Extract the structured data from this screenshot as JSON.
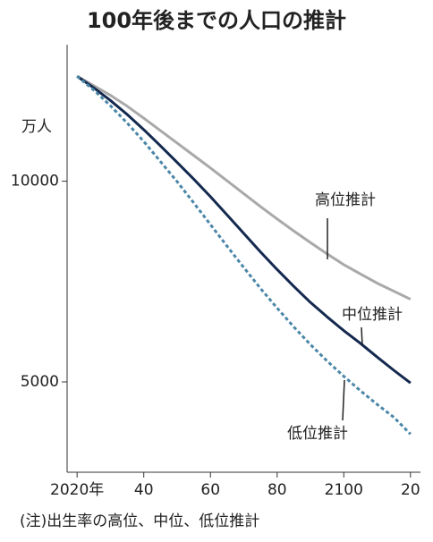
{
  "chart_data": {
    "type": "line",
    "title": "100年後までの人口の推計",
    "y_label": "万人",
    "note": "(注)出生率の高位、中位、低位推計",
    "x": [
      2020,
      2025,
      2030,
      2035,
      2040,
      2045,
      2050,
      2055,
      2060,
      2065,
      2070,
      2075,
      2080,
      2085,
      2090,
      2095,
      2100,
      2105,
      2110,
      2115,
      2120
    ],
    "series": [
      {
        "name": "高位推計",
        "color": "#a9a9a9",
        "dashed": false,
        "values": [
          12615,
          12380,
          12140,
          11870,
          11570,
          11260,
          10950,
          10640,
          10330,
          10010,
          9690,
          9370,
          9060,
          8760,
          8470,
          8190,
          7920,
          7690,
          7460,
          7260,
          7060
        ]
      },
      {
        "name": "中位推計",
        "color": "#14294f",
        "dashed": false,
        "values": [
          12615,
          12326,
          12012,
          11664,
          11284,
          10880,
          10469,
          10051,
          9615,
          9159,
          8700,
          8240,
          7800,
          7380,
          6980,
          6620,
          6278,
          5960,
          5620,
          5290,
          4973
        ]
      },
      {
        "name": "低位推計",
        "color": "#4a86a8",
        "dashed": true,
        "values": [
          12615,
          12270,
          11880,
          11450,
          10990,
          10490,
          9990,
          9460,
          8920,
          8380,
          7850,
          7330,
          6840,
          6370,
          5930,
          5520,
          5140,
          4780,
          4440,
          4120,
          3700
        ]
      }
    ],
    "xlim": [
      2017,
      2123
    ],
    "xticks": [
      {
        "value": 2020,
        "label": "2020年"
      },
      {
        "value": 2040,
        "label": "40"
      },
      {
        "value": 2060,
        "label": "60"
      },
      {
        "value": 2080,
        "label": "80"
      },
      {
        "value": 2100,
        "label": "2100"
      },
      {
        "value": 2120,
        "label": "20"
      }
    ],
    "ylim": [
      2750,
      13400
    ],
    "yticks": [
      5000,
      10000
    ],
    "grid": false
  }
}
